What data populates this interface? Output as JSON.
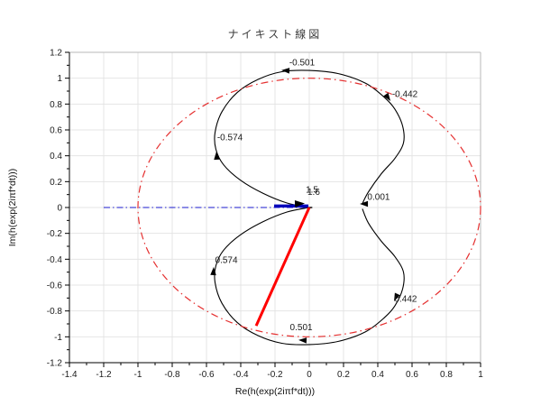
{
  "title": "ナイキスト線図",
  "chart_data": {
    "type": "line",
    "title": "ナイキスト線図",
    "xlabel": "Re(h(exp(2iπf*dt)))",
    "ylabel": "Im(h(exp(2iπf*dt)))",
    "xlim": [
      -1.4,
      1
    ],
    "ylim": [
      -1.2,
      1.2
    ],
    "x_major_ticks": [
      -1.4,
      -1.2,
      -1,
      -0.8,
      -0.6,
      -0.4,
      -0.2,
      0,
      0.2,
      0.4,
      0.6,
      0.8,
      1
    ],
    "y_major_ticks": [
      -1.2,
      -1,
      -0.8,
      -0.6,
      -0.4,
      -0.2,
      0,
      0.2,
      0.4,
      0.6,
      0.8,
      1,
      1.2
    ],
    "minor_tick_step": 0.1,
    "grid": true,
    "legend": "none",
    "series": [
      {
        "name": "nyquist-curve",
        "kind": "curve",
        "color": "#000000",
        "width": 1.1,
        "points": [
          [
            0.31,
            0.03
          ],
          [
            0.345,
            0.12
          ],
          [
            0.42,
            0.26
          ],
          [
            0.5,
            0.38
          ],
          [
            0.55,
            0.5
          ],
          [
            0.545,
            0.63
          ],
          [
            0.5,
            0.76
          ],
          [
            0.44,
            0.85
          ],
          [
            0.33,
            0.96
          ],
          [
            0.17,
            1.035
          ],
          [
            0.0,
            1.06
          ],
          [
            -0.16,
            1.05
          ],
          [
            -0.3,
            0.99
          ],
          [
            -0.42,
            0.89
          ],
          [
            -0.51,
            0.74
          ],
          [
            -0.55,
            0.58
          ],
          [
            -0.545,
            0.45
          ],
          [
            -0.5,
            0.33
          ],
          [
            -0.4,
            0.21
          ],
          [
            -0.27,
            0.11
          ],
          [
            -0.13,
            0.035
          ],
          [
            0,
            0
          ],
          [
            0,
            0
          ],
          [
            -0.13,
            -0.035
          ],
          [
            -0.27,
            -0.11
          ],
          [
            -0.4,
            -0.21
          ],
          [
            -0.5,
            -0.33
          ],
          [
            -0.545,
            -0.45
          ],
          [
            -0.55,
            -0.58
          ],
          [
            -0.51,
            -0.74
          ],
          [
            -0.42,
            -0.89
          ],
          [
            -0.3,
            -0.99
          ],
          [
            -0.16,
            -1.05
          ],
          [
            0.0,
            -1.06
          ],
          [
            0.17,
            -1.035
          ],
          [
            0.33,
            -0.96
          ],
          [
            0.44,
            -0.85
          ],
          [
            0.5,
            -0.76
          ],
          [
            0.545,
            -0.63
          ],
          [
            0.55,
            -0.5
          ],
          [
            0.5,
            -0.38
          ],
          [
            0.42,
            -0.26
          ],
          [
            0.345,
            -0.12
          ],
          [
            0.31,
            -0.01
          ]
        ]
      },
      {
        "name": "unit-circle",
        "kind": "ellipse",
        "color": "#e53030",
        "width": 1.2,
        "dash": "8 4 1.5 4",
        "center": [
          0,
          0
        ],
        "radius": 1
      },
      {
        "name": "negative-real-axis",
        "kind": "line",
        "color": "#1a1acc",
        "width": 1,
        "dash": "7 3 1.5 3",
        "points": [
          [
            -1.2,
            0.0
          ],
          [
            0.0,
            0.0
          ]
        ]
      },
      {
        "name": "blue-vector",
        "kind": "line",
        "color": "#0000bb",
        "width": 3.4,
        "points": [
          [
            -0.205,
            0.012
          ],
          [
            -0.005,
            0.012
          ]
        ]
      },
      {
        "name": "red-vector",
        "kind": "line",
        "color": "#ff0000",
        "width": 3,
        "points": [
          [
            0.0,
            0.0
          ],
          [
            -0.31,
            -0.915
          ]
        ]
      }
    ],
    "arrowheads": [
      {
        "x": -0.026,
        "y": 0.031,
        "angle": -2,
        "color": "#000000",
        "size": 11
      }
    ],
    "annotations": [
      {
        "label": "-0.501",
        "lx": -0.042,
        "ly": 1.123,
        "ax": -0.163,
        "ay": 1.061,
        "angle": 183
      },
      {
        "label": "-0.442",
        "lx": 0.558,
        "ly": 0.879,
        "ax": 0.474,
        "ay": 0.823,
        "angle": 55
      },
      {
        "label": "-0.574",
        "lx": -0.463,
        "ly": 0.544,
        "ax": -0.542,
        "ay": 0.433,
        "angle": -93
      },
      {
        "label": "0.001",
        "lx": 0.405,
        "ly": 0.084,
        "ax": 0.295,
        "ay": 0.028,
        "angle": 180
      },
      {
        "label": "1.5",
        "lx": 0.016,
        "ly": 0.14
      },
      {
        "label": "1.6",
        "lx": 0.026,
        "ly": 0.122
      },
      {
        "label": "0.442",
        "lx": 0.563,
        "ly": -0.705,
        "ax": 0.495,
        "ay": -0.726,
        "angle": 115
      },
      {
        "label": "0.501",
        "lx": -0.047,
        "ly": -0.925,
        "ax": -0.063,
        "ay": -1.025,
        "angle": 183
      },
      {
        "label": "0.574",
        "lx": -0.484,
        "ly": -0.405,
        "ax": -0.558,
        "ay": -0.46,
        "angle": -87
      }
    ]
  }
}
